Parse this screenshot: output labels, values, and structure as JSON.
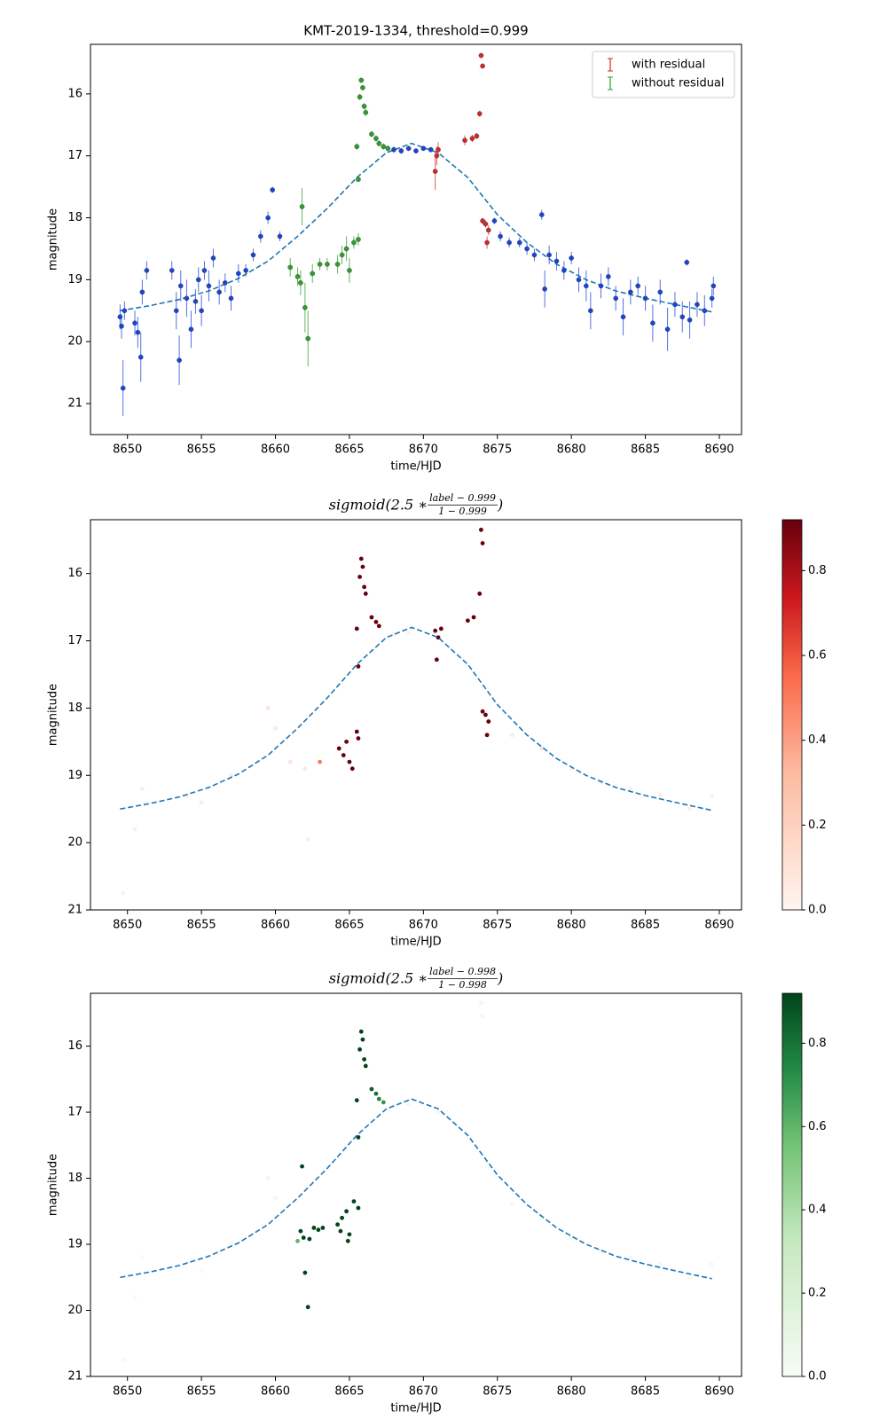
{
  "chart_data": [
    {
      "type": "errorbar",
      "title": "KMT-2019-1334, threshold=0.999",
      "xlabel": "time/HJD",
      "ylabel": "magnitude",
      "xlim": [
        8647.5,
        8691.5
      ],
      "xticks": [
        8650,
        8655,
        8660,
        8665,
        8670,
        8675,
        8680,
        8685,
        8690
      ],
      "ylim": [
        21.5,
        15.2
      ],
      "yticks": [
        16,
        17,
        18,
        19,
        20,
        21
      ],
      "legend": "upper right",
      "model": {
        "color": "#1f77b4",
        "linestyle": "dashed",
        "x": [
          8649.5,
          8651.5,
          8653.5,
          8655.5,
          8657.5,
          8659.5,
          8661.5,
          8663.5,
          8665.5,
          8667.5,
          8669.2,
          8671,
          8673,
          8675,
          8677,
          8679,
          8681,
          8683,
          8685,
          8687,
          8689.5
        ],
        "values": [
          19.5,
          19.42,
          19.32,
          19.18,
          18.98,
          18.7,
          18.3,
          17.85,
          17.35,
          16.95,
          16.8,
          16.95,
          17.35,
          17.95,
          18.4,
          18.75,
          19.0,
          19.18,
          19.3,
          19.4,
          19.52
        ]
      },
      "series": [
        {
          "color": "#1a44d8",
          "x": [
            8649.5,
            8649.6,
            8649.7,
            8649.8,
            8650.5,
            8650.7,
            8650.9,
            8651.0,
            8651.3,
            8653.0,
            8653.3,
            8653.5,
            8653.6,
            8654.0,
            8654.3,
            8654.6,
            8654.8,
            8655.0,
            8655.2,
            8655.5,
            8655.8,
            8656.2,
            8656.6,
            8657.0,
            8657.5,
            8658.0,
            8658.5,
            8659.0,
            8659.5,
            8659.8,
            8660.3,
            8668,
            8668.5,
            8669,
            8669.5,
            8670,
            8670.5,
            8674.8,
            8675.2,
            8675.8,
            8676.5,
            8677,
            8677.5,
            8678,
            8678.2,
            8678.5,
            8679,
            8679.5,
            8680,
            8680.5,
            8681,
            8681.3,
            8682,
            8682.5,
            8683,
            8683.5,
            8684,
            8684.5,
            8685,
            8685.5,
            8686,
            8686.5,
            8687,
            8687.5,
            8687.8,
            8688,
            8688.5,
            8689,
            8689.5,
            8689.6
          ],
          "values": [
            19.6,
            19.75,
            20.75,
            19.5,
            19.7,
            19.85,
            20.25,
            19.2,
            18.85,
            18.85,
            19.5,
            20.3,
            19.1,
            19.3,
            19.8,
            19.35,
            19.0,
            19.5,
            18.85,
            19.1,
            18.65,
            19.2,
            19.05,
            19.3,
            18.9,
            18.85,
            18.6,
            18.3,
            18.0,
            17.55,
            18.3,
            16.9,
            16.92,
            16.88,
            16.92,
            16.88,
            16.9,
            18.05,
            18.3,
            18.4,
            18.4,
            18.5,
            18.6,
            17.95,
            19.15,
            18.6,
            18.7,
            18.85,
            18.65,
            19.0,
            19.1,
            19.5,
            19.1,
            18.95,
            19.3,
            19.6,
            19.2,
            19.1,
            19.3,
            19.7,
            19.2,
            19.8,
            19.4,
            19.6,
            18.72,
            19.65,
            19.4,
            19.5,
            19.3,
            19.1
          ],
          "errors": [
            0.2,
            0.2,
            0.45,
            0.15,
            0.2,
            0.25,
            0.4,
            0.2,
            0.15,
            0.15,
            0.3,
            0.4,
            0.25,
            0.3,
            0.3,
            0.2,
            0.2,
            0.25,
            0.15,
            0.25,
            0.15,
            0.2,
            0.15,
            0.2,
            0.15,
            0.1,
            0.1,
            0.1,
            0.1,
            0.05,
            0.08,
            0.05,
            0.05,
            0.04,
            0.04,
            0.04,
            0.04,
            0.05,
            0.08,
            0.08,
            0.08,
            0.1,
            0.1,
            0.08,
            0.3,
            0.15,
            0.15,
            0.15,
            0.1,
            0.2,
            0.25,
            0.3,
            0.2,
            0.15,
            0.2,
            0.3,
            0.2,
            0.15,
            0.2,
            0.3,
            0.2,
            0.35,
            0.2,
            0.25,
            0.05,
            0.3,
            0.2,
            0.25,
            0.15,
            0.15
          ]
        },
        {
          "name": "with residual",
          "color": "#d62728",
          "x": [
            8673.9,
            8674.0,
            8673.8,
            8673.6,
            8673.3,
            8672.8,
            8671.0,
            8670.9,
            8670.8,
            8674.0,
            8674.2,
            8674.4,
            8674.3
          ],
          "values": [
            15.38,
            15.55,
            16.32,
            16.68,
            16.72,
            16.75,
            16.9,
            17.0,
            17.25,
            18.05,
            18.1,
            18.2,
            18.4
          ],
          "errors": [
            0.04,
            0.04,
            0.05,
            0.05,
            0.06,
            0.08,
            0.12,
            0.15,
            0.3,
            0.05,
            0.06,
            0.08,
            0.1
          ]
        },
        {
          "name": "without residual",
          "color": "#2ca02c",
          "x": [
            8665.8,
            8665.9,
            8665.7,
            8666.0,
            8666.1,
            8665.5,
            8666.5,
            8666.8,
            8667.0,
            8667.3,
            8667.6,
            8665.6,
            8661.8,
            8662.0,
            8662.2,
            8661.0,
            8661.5,
            8661.7,
            8662.5,
            8663.0,
            8663.5,
            8664.2,
            8664.5,
            8664.8,
            8665.0,
            8665.3,
            8665.6
          ],
          "values": [
            15.78,
            15.9,
            16.05,
            16.2,
            16.3,
            16.85,
            16.65,
            16.72,
            16.8,
            16.85,
            16.88,
            17.38,
            17.82,
            19.45,
            19.95,
            18.8,
            18.95,
            19.05,
            18.9,
            18.75,
            18.75,
            18.75,
            18.6,
            18.5,
            18.85,
            18.4,
            18.35
          ],
          "errors": [
            0.04,
            0.04,
            0.05,
            0.05,
            0.06,
            0.05,
            0.05,
            0.05,
            0.05,
            0.05,
            0.05,
            0.04,
            0.3,
            0.4,
            0.45,
            0.15,
            0.15,
            0.2,
            0.15,
            0.1,
            0.1,
            0.15,
            0.15,
            0.2,
            0.2,
            0.1,
            0.1
          ]
        }
      ]
    },
    {
      "type": "scatter",
      "title": {
        "prefix": "sigmoid(2.5 ∗ ",
        "numerator": "label − 0.999",
        "denominator": "1 − 0.999",
        "suffix": ")"
      },
      "xlabel": "time/HJD",
      "ylabel": "magnitude",
      "xlim": [
        8647.5,
        8691.5
      ],
      "xticks": [
        8650,
        8655,
        8660,
        8665,
        8670,
        8675,
        8680,
        8685,
        8690
      ],
      "ylim": [
        21,
        15.2
      ],
      "yticks": [
        16,
        17,
        18,
        19,
        20,
        21
      ],
      "colormap": "Reds",
      "clim": [
        0,
        0.92
      ],
      "cticks": [
        {
          "value": 0,
          "label": "0.0"
        },
        0.2,
        0.4,
        0.6,
        0.8
      ],
      "model": {
        "color": "#1f77b4",
        "linestyle": "dashed",
        "x": [
          8649.5,
          8651.5,
          8653.5,
          8655.5,
          8657.5,
          8659.5,
          8661.5,
          8663.5,
          8665.5,
          8667.5,
          8669.2,
          8671,
          8673,
          8675,
          8677,
          8679,
          8681,
          8683,
          8685,
          8687,
          8689.5
        ],
        "values": [
          19.5,
          19.42,
          19.32,
          19.18,
          18.98,
          18.7,
          18.3,
          17.85,
          17.35,
          16.95,
          16.8,
          16.95,
          17.35,
          17.95,
          18.4,
          18.75,
          19.0,
          19.18,
          19.3,
          19.4,
          19.52
        ]
      },
      "points": {
        "x": [
          8649.7,
          8650.5,
          8651,
          8654,
          8655,
          8657,
          8659.5,
          8660,
          8661,
          8662,
          8662.2,
          8668,
          8669,
          8676,
          8678,
          8680,
          8682,
          8684,
          8686,
          8688,
          8689.5,
          8663.0,
          8665.8,
          8665.9,
          8665.7,
          8666.0,
          8666.1,
          8665.5,
          8666.5,
          8666.8,
          8667.0,
          8665.6,
          8664.3,
          8664.6,
          8664.8,
          8665.0,
          8665.2,
          8665.5,
          8665.6,
          8670.8,
          8671.0,
          8670.9,
          8671.2,
          8673.0,
          8673.4,
          8673.8,
          8673.9,
          8674.0,
          8674.0,
          8674.2,
          8674.4,
          8674.3
        ],
        "values": [
          20.75,
          19.8,
          19.2,
          19.3,
          19.4,
          19.0,
          18.0,
          18.3,
          18.8,
          18.9,
          19.95,
          16.9,
          16.88,
          18.4,
          18.6,
          18.9,
          19.1,
          19.2,
          19.3,
          19.5,
          19.3,
          18.8,
          15.78,
          15.9,
          16.05,
          16.2,
          16.3,
          16.82,
          16.65,
          16.72,
          16.78,
          17.38,
          18.6,
          18.7,
          18.5,
          18.8,
          18.9,
          18.35,
          18.45,
          16.85,
          16.95,
          17.28,
          16.82,
          16.7,
          16.65,
          16.3,
          15.35,
          15.55,
          18.05,
          18.1,
          18.2,
          18.4
        ],
        "c": [
          0.03,
          0.05,
          0.04,
          0.06,
          0.05,
          0.08,
          0.1,
          0.07,
          0.09,
          0.08,
          0.05,
          0.02,
          0.02,
          0.06,
          0.09,
          0.05,
          0.07,
          0.05,
          0.06,
          0.05,
          0.04,
          0.5,
          0.92,
          0.92,
          0.92,
          0.92,
          0.92,
          0.92,
          0.92,
          0.92,
          0.92,
          0.92,
          0.92,
          0.92,
          0.92,
          0.92,
          0.92,
          0.92,
          0.92,
          0.92,
          0.92,
          0.92,
          0.92,
          0.92,
          0.92,
          0.92,
          0.92,
          0.92,
          0.92,
          0.92,
          0.92,
          0.92
        ]
      }
    },
    {
      "type": "scatter",
      "title": {
        "prefix": "sigmoid(2.5 ∗ ",
        "numerator": "label − 0.998",
        "denominator": "1 − 0.998",
        "suffix": ")"
      },
      "xlabel": "time/HJD",
      "ylabel": "magnitude",
      "xlim": [
        8647.5,
        8691.5
      ],
      "xticks": [
        8650,
        8655,
        8660,
        8665,
        8670,
        8675,
        8680,
        8685,
        8690
      ],
      "ylim": [
        21,
        15.2
      ],
      "yticks": [
        16,
        17,
        18,
        19,
        20,
        21
      ],
      "colormap": "Greens",
      "clim": [
        0,
        0.92
      ],
      "cticks": [
        {
          "value": 0,
          "label": "0.0"
        },
        0.2,
        0.4,
        0.6,
        0.8
      ],
      "model": {
        "color": "#1f77b4",
        "linestyle": "dashed",
        "x": [
          8649.5,
          8651.5,
          8653.5,
          8655.5,
          8657.5,
          8659.5,
          8661.5,
          8663.5,
          8665.5,
          8667.5,
          8669.2,
          8671,
          8673,
          8675,
          8677,
          8679,
          8681,
          8683,
          8685,
          8687,
          8689.5
        ],
        "values": [
          19.5,
          19.42,
          19.32,
          19.18,
          18.98,
          18.7,
          18.3,
          17.85,
          17.35,
          16.95,
          16.8,
          16.95,
          17.35,
          17.95,
          18.4,
          18.75,
          19.0,
          19.18,
          19.3,
          19.4,
          19.52
        ]
      },
      "points": {
        "x": [
          8649.7,
          8650.5,
          8651,
          8654,
          8655,
          8657,
          8659.5,
          8660,
          8668,
          8669,
          8673.9,
          8674.0,
          8671,
          8676,
          8678,
          8680,
          8682,
          8684,
          8686,
          8688,
          8689.5,
          8665.8,
          8665.9,
          8665.7,
          8666.0,
          8666.1,
          8665.5,
          8666.5,
          8666.8,
          8667.0,
          8667.3,
          8665.6,
          8661.8,
          8662.0,
          8662.2,
          8661.5,
          8661.7,
          8661.9,
          8662.3,
          8662.6,
          8662.9,
          8663.2,
          8664.2,
          8664.5,
          8664.8,
          8665.0,
          8665.3,
          8665.6,
          8664.4,
          8664.9
        ],
        "values": [
          20.75,
          19.8,
          19.2,
          19.3,
          19.4,
          19.0,
          18.0,
          18.3,
          16.9,
          16.88,
          15.35,
          15.55,
          17.0,
          18.4,
          18.6,
          18.9,
          19.1,
          19.2,
          19.3,
          19.5,
          19.3,
          15.78,
          15.9,
          16.05,
          16.2,
          16.3,
          16.82,
          16.65,
          16.72,
          16.8,
          16.85,
          17.38,
          17.82,
          19.43,
          19.95,
          18.95,
          18.8,
          18.9,
          18.92,
          18.75,
          18.78,
          18.75,
          18.7,
          18.6,
          18.5,
          18.85,
          18.35,
          18.45,
          18.8,
          18.95
        ],
        "c": [
          0.02,
          0.03,
          0.03,
          0.04,
          0.03,
          0.05,
          0.06,
          0.05,
          0.02,
          0.02,
          0.05,
          0.05,
          0.03,
          0.04,
          0.05,
          0.04,
          0.05,
          0.04,
          0.04,
          0.03,
          0.03,
          0.92,
          0.92,
          0.92,
          0.92,
          0.92,
          0.92,
          0.85,
          0.8,
          0.75,
          0.7,
          0.92,
          0.92,
          0.92,
          0.92,
          0.6,
          0.92,
          0.92,
          0.92,
          0.92,
          0.92,
          0.92,
          0.92,
          0.92,
          0.92,
          0.92,
          0.92,
          0.92,
          0.92,
          0.92
        ]
      }
    }
  ]
}
